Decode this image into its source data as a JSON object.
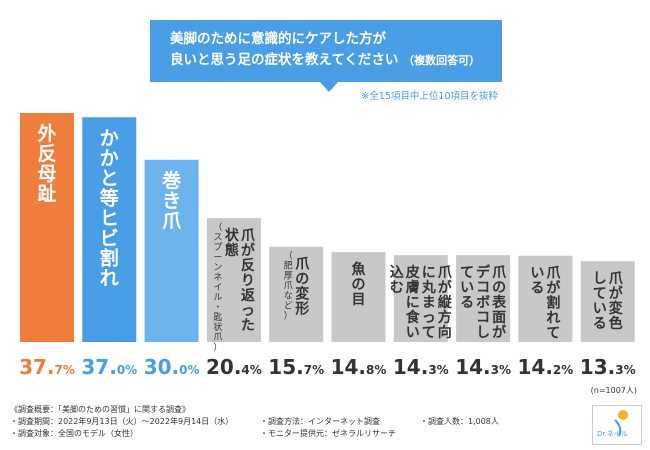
{
  "title": {
    "line1": "美脚のために意識的にケアした方が",
    "line2": "良いと思う足の症状を教えてください",
    "line2_sub": "（複数回答可）"
  },
  "note": "※全15項目中上位10項目を抜粋",
  "chart_data": {
    "type": "bar",
    "ylim": [
      0,
      40
    ],
    "categories": [
      "外反母趾",
      "かかと等ヒビ割れ",
      "巻き爪",
      "爪が反り返った状態",
      "爪の変形",
      "魚の目",
      "爪が縦方向に丸まって皮膚に食い込む",
      "爪の表面がデコボコしている",
      "爪が割れている",
      "爪が変色している"
    ],
    "values": [
      37.7,
      37.0,
      30.0,
      20.4,
      15.7,
      14.8,
      14.3,
      14.3,
      14.2,
      13.3
    ],
    "category_subnotes": [
      "",
      "",
      "",
      "（スプーンネイル・匙状爪）",
      "（肥厚爪など）",
      "",
      "",
      "",
      "",
      ""
    ],
    "value_labels": [
      {
        "int": "37.",
        "dec": "7%"
      },
      {
        "int": "37.",
        "dec": "0%"
      },
      {
        "int": "30.",
        "dec": "0%"
      },
      {
        "int": "20.",
        "dec": "4%"
      },
      {
        "int": "15.",
        "dec": "7%"
      },
      {
        "int": "14.",
        "dec": "8%"
      },
      {
        "int": "14.",
        "dec": "3%"
      },
      {
        "int": "14.",
        "dec": "3%"
      },
      {
        "int": "14.",
        "dec": "2%"
      },
      {
        "int": "13.",
        "dec": "3%"
      }
    ],
    "n_label": "(n=1007人)"
  },
  "colors": {
    "orange": "#ef7d3b",
    "blue": "#4a9ee6",
    "lightblue": "#6db3ee",
    "gray": "#c8c8c8",
    "dark": "#333333"
  },
  "footer": {
    "heading": "《調査概要：「美脚のための習慣」に関する調査》",
    "period": "・調査期間：2022年9月13日（火）～2022年9月14日（水）",
    "method": "・調査方法：インターネット調査",
    "count": "・調査人数：1,008人",
    "target": "・調査対象：全国のモデル（女性）",
    "provider": "・モニター提供元：ゼネラルリサーチ"
  },
  "logo": {
    "text": "Dr.ネイル"
  }
}
